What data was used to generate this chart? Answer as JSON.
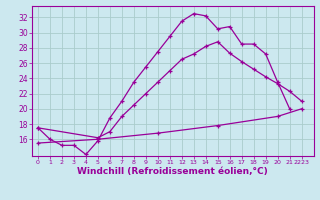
{
  "background_color": "#cce8ef",
  "grid_color": "#aacccc",
  "line_color": "#990099",
  "marker": "+",
  "xlabel": "Windchill (Refroidissement éolien,°C)",
  "xlabel_fontsize": 6.5,
  "ytick_labels": [
    "16",
    "18",
    "20",
    "22",
    "24",
    "26",
    "28",
    "30",
    "32"
  ],
  "yticks": [
    16,
    18,
    20,
    22,
    24,
    26,
    28,
    30,
    32
  ],
  "xtick_labels": [
    "0",
    "1",
    "2",
    "3",
    "4",
    "5",
    "6",
    "7",
    "8",
    "9",
    "10",
    "11",
    "12",
    "13",
    "14",
    "15",
    "16",
    "17",
    "18",
    "19",
    "20",
    "21",
    "2223"
  ],
  "xticks": [
    0,
    1,
    2,
    3,
    4,
    5,
    6,
    7,
    8,
    9,
    10,
    11,
    12,
    13,
    14,
    15,
    16,
    17,
    18,
    19,
    20,
    21,
    22
  ],
  "xlim": [
    -0.5,
    23.0
  ],
  "ylim": [
    13.8,
    33.5
  ],
  "line1_x": [
    0,
    1,
    2,
    3,
    4,
    5,
    6,
    7,
    8,
    9,
    10,
    11,
    12,
    13,
    14,
    15,
    16,
    17,
    18,
    19,
    20,
    21
  ],
  "line1_y": [
    17.5,
    16.0,
    15.2,
    15.2,
    14.0,
    15.8,
    18.8,
    21.0,
    23.5,
    25.5,
    27.5,
    29.5,
    31.5,
    32.5,
    32.2,
    30.5,
    30.8,
    28.5,
    28.5,
    27.2,
    23.5,
    20.0
  ],
  "line2_x": [
    0,
    5,
    6,
    7,
    8,
    9,
    10,
    11,
    12,
    13,
    14,
    15,
    16,
    17,
    18,
    19,
    20,
    21,
    22
  ],
  "line2_y": [
    17.5,
    16.2,
    17.0,
    19.0,
    20.5,
    22.0,
    23.5,
    25.0,
    26.5,
    27.2,
    28.2,
    28.8,
    27.3,
    26.2,
    25.2,
    24.2,
    23.3,
    22.3,
    21.0
  ],
  "line3_x": [
    0,
    5,
    10,
    15,
    20,
    22
  ],
  "line3_y": [
    15.5,
    16.0,
    16.8,
    17.8,
    19.0,
    20.0
  ]
}
